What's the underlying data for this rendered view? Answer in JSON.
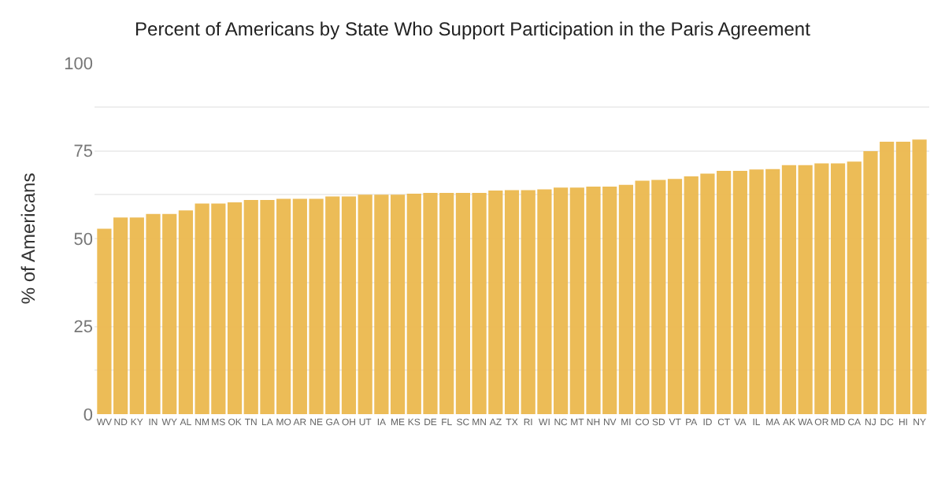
{
  "chart_data": {
    "type": "bar",
    "title": "Percent of Americans by State Who Support Participation in the Paris Agreement",
    "ylabel": "% of Americans",
    "categories": [
      "WV",
      "ND",
      "KY",
      "IN",
      "WY",
      "AL",
      "NM",
      "MS",
      "OK",
      "TN",
      "LA",
      "MO",
      "AR",
      "NE",
      "GA",
      "OH",
      "UT",
      "IA",
      "ME",
      "KS",
      "DE",
      "FL",
      "SC",
      "MN",
      "AZ",
      "TX",
      "RI",
      "WI",
      "NC",
      "MT",
      "NH",
      "NV",
      "MI",
      "CO",
      "SD",
      "VT",
      "PA",
      "ID",
      "CT",
      "VA",
      "IL",
      "MA",
      "AK",
      "WA",
      "OR",
      "MD",
      "CA",
      "NJ",
      "DC",
      "HI",
      "NY"
    ],
    "values": [
      52.8,
      56,
      56,
      57,
      57,
      58,
      60,
      60,
      60.3,
      61,
      61,
      61.3,
      61.3,
      61.3,
      62,
      62,
      62.5,
      62.5,
      62.5,
      62.8,
      63,
      63,
      63,
      63,
      63.7,
      63.8,
      63.8,
      64,
      64.5,
      64.5,
      64.8,
      64.8,
      65.3,
      66.5,
      66.7,
      67,
      67.7,
      68.5,
      69.3,
      69.3,
      69.7,
      69.8,
      70.9,
      70.9,
      71.4,
      71.4,
      71.9,
      74.9,
      77.6,
      77.6,
      78.2
    ],
    "color": "#ecb94f",
    "ylim": [
      0,
      100
    ],
    "yticks": [
      0,
      {
        "value": 12.5,
        "label": null
      },
      25,
      {
        "value": 37.5,
        "label": null
      },
      50,
      {
        "value": 62.5,
        "label": null
      },
      75,
      {
        "value": 87.5,
        "label": null
      },
      100
    ],
    "grid": "y"
  }
}
